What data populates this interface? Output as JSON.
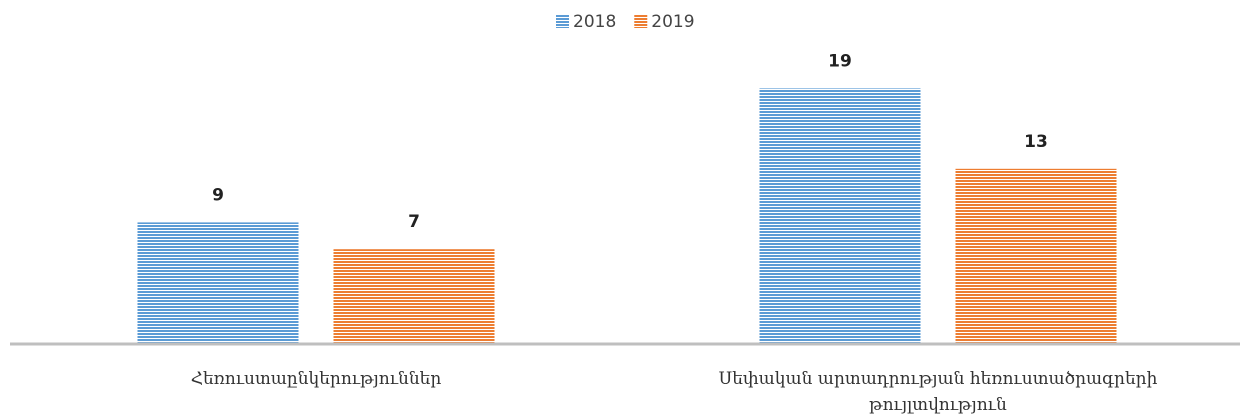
{
  "chart_data": {
    "type": "bar",
    "categories": [
      "Հեռուստաընկերություններ",
      "Սեփական արտադրության հեռուստածրագրերի թույլտվություն"
    ],
    "series": [
      {
        "name": "2018",
        "color": "#5b9bd5",
        "values": [
          9,
          19
        ]
      },
      {
        "name": "2019",
        "color": "#ed7d31",
        "values": [
          7,
          13
        ]
      }
    ],
    "ylim": [
      0,
      20
    ],
    "legend": "top"
  }
}
